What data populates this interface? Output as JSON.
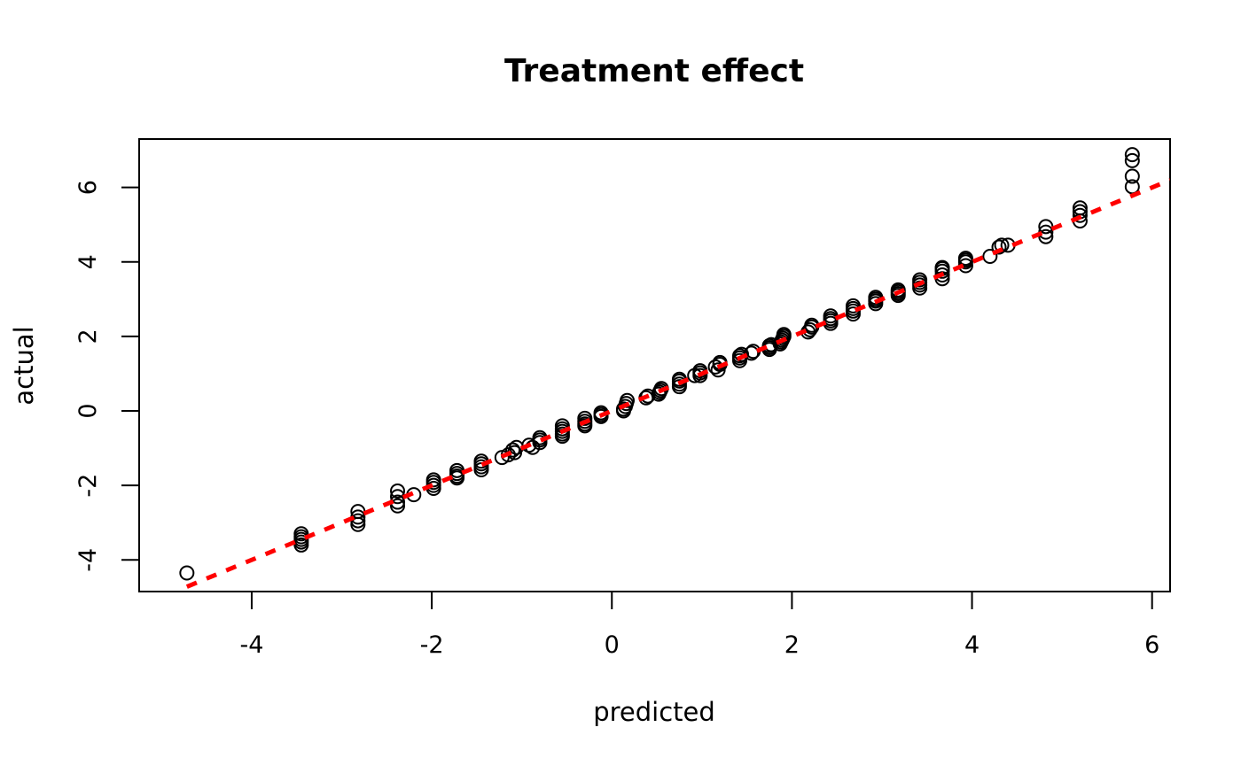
{
  "chart_data": {
    "type": "scatter",
    "title": "Treatment effect",
    "xlabel": "predicted",
    "ylabel": "actual",
    "xlim": [
      -5.25,
      6.2
    ],
    "ylim": [
      -4.85,
      7.3
    ],
    "xticks": [
      -4,
      -2,
      0,
      2,
      4,
      6
    ],
    "yticks": [
      -4,
      -2,
      0,
      2,
      4,
      6
    ],
    "xtick_labels": [
      "-4",
      "-2",
      "0",
      "2",
      "4",
      "6"
    ],
    "ytick_labels": [
      "-4",
      "-2",
      "0",
      "2",
      "4",
      "6"
    ],
    "grid": false,
    "legend": false,
    "reference_line": {
      "slope": 1,
      "intercept": 0,
      "style": "dashed",
      "color": "#ff0000"
    },
    "colors": {
      "points": "#000000",
      "reference_line": "#ff0000"
    },
    "points": [
      [
        -4.72,
        -4.35
      ],
      [
        -3.45,
        -3.3
      ],
      [
        -3.45,
        -3.38
      ],
      [
        -3.45,
        -3.45
      ],
      [
        -3.45,
        -3.52
      ],
      [
        -3.45,
        -3.6
      ],
      [
        -2.82,
        -2.7
      ],
      [
        -2.82,
        -2.85
      ],
      [
        -2.82,
        -2.95
      ],
      [
        -2.82,
        -3.05
      ],
      [
        -2.38,
        -2.15
      ],
      [
        -2.38,
        -2.3
      ],
      [
        -2.38,
        -2.45
      ],
      [
        -2.38,
        -2.55
      ],
      [
        -2.2,
        -2.25
      ],
      [
        -1.98,
        -1.85
      ],
      [
        -1.98,
        -1.92
      ],
      [
        -1.98,
        -2.0
      ],
      [
        -1.98,
        -2.08
      ],
      [
        -1.72,
        -1.6
      ],
      [
        -1.72,
        -1.68
      ],
      [
        -1.72,
        -1.75
      ],
      [
        -1.72,
        -1.8
      ],
      [
        -1.45,
        -1.35
      ],
      [
        -1.45,
        -1.42
      ],
      [
        -1.45,
        -1.5
      ],
      [
        -1.45,
        -1.58
      ],
      [
        -1.22,
        -1.25
      ],
      [
        -1.15,
        -1.18
      ],
      [
        -1.1,
        -1.05
      ],
      [
        -1.08,
        -1.12
      ],
      [
        -1.06,
        -0.98
      ],
      [
        -0.92,
        -0.92
      ],
      [
        -0.88,
        -0.98
      ],
      [
        -0.8,
        -0.72
      ],
      [
        -0.8,
        -0.78
      ],
      [
        -0.8,
        -0.85
      ],
      [
        -0.55,
        -0.4
      ],
      [
        -0.55,
        -0.48
      ],
      [
        -0.55,
        -0.55
      ],
      [
        -0.55,
        -0.62
      ],
      [
        -0.55,
        -0.68
      ],
      [
        -0.3,
        -0.2
      ],
      [
        -0.3,
        -0.28
      ],
      [
        -0.3,
        -0.35
      ],
      [
        -0.3,
        -0.4
      ],
      [
        -0.12,
        -0.05
      ],
      [
        -0.12,
        -0.1
      ],
      [
        -0.12,
        -0.15
      ],
      [
        0.13,
        0.0
      ],
      [
        0.13,
        0.05
      ],
      [
        0.15,
        0.12
      ],
      [
        0.16,
        0.2
      ],
      [
        0.17,
        0.28
      ],
      [
        0.38,
        0.35
      ],
      [
        0.4,
        0.4
      ],
      [
        0.52,
        0.45
      ],
      [
        0.53,
        0.5
      ],
      [
        0.54,
        0.55
      ],
      [
        0.55,
        0.6
      ],
      [
        0.75,
        0.65
      ],
      [
        0.75,
        0.72
      ],
      [
        0.75,
        0.8
      ],
      [
        0.75,
        0.85
      ],
      [
        0.92,
        0.95
      ],
      [
        0.98,
        0.95
      ],
      [
        0.98,
        1.02
      ],
      [
        0.98,
        1.08
      ],
      [
        1.15,
        1.18
      ],
      [
        1.18,
        1.1
      ],
      [
        1.2,
        1.25
      ],
      [
        1.2,
        1.3
      ],
      [
        1.42,
        1.35
      ],
      [
        1.42,
        1.42
      ],
      [
        1.42,
        1.48
      ],
      [
        1.44,
        1.52
      ],
      [
        1.55,
        1.55
      ],
      [
        1.57,
        1.6
      ],
      [
        1.75,
        1.65
      ],
      [
        1.75,
        1.7
      ],
      [
        1.75,
        1.75
      ],
      [
        1.77,
        1.78
      ],
      [
        1.87,
        1.8
      ],
      [
        1.88,
        1.85
      ],
      [
        1.89,
        1.9
      ],
      [
        1.9,
        1.95
      ],
      [
        1.91,
        2.0
      ],
      [
        1.91,
        2.05
      ],
      [
        2.18,
        2.12
      ],
      [
        2.2,
        2.18
      ],
      [
        2.22,
        2.25
      ],
      [
        2.22,
        2.3
      ],
      [
        2.43,
        2.35
      ],
      [
        2.43,
        2.42
      ],
      [
        2.43,
        2.48
      ],
      [
        2.43,
        2.55
      ],
      [
        2.68,
        2.6
      ],
      [
        2.68,
        2.68
      ],
      [
        2.68,
        2.75
      ],
      [
        2.68,
        2.82
      ],
      [
        2.93,
        2.88
      ],
      [
        2.93,
        2.95
      ],
      [
        2.93,
        3.0
      ],
      [
        2.93,
        3.05
      ],
      [
        3.18,
        3.1
      ],
      [
        3.18,
        3.15
      ],
      [
        3.18,
        3.2
      ],
      [
        3.18,
        3.25
      ],
      [
        3.42,
        3.3
      ],
      [
        3.42,
        3.38
      ],
      [
        3.42,
        3.45
      ],
      [
        3.42,
        3.52
      ],
      [
        3.67,
        3.55
      ],
      [
        3.67,
        3.65
      ],
      [
        3.67,
        3.75
      ],
      [
        3.67,
        3.82
      ],
      [
        3.67,
        3.85
      ],
      [
        3.93,
        3.9
      ],
      [
        3.93,
        4.0
      ],
      [
        3.93,
        4.05
      ],
      [
        3.93,
        4.1
      ],
      [
        4.2,
        4.15
      ],
      [
        4.3,
        4.4
      ],
      [
        4.33,
        4.45
      ],
      [
        4.4,
        4.45
      ],
      [
        4.82,
        4.68
      ],
      [
        4.82,
        4.8
      ],
      [
        4.82,
        4.95
      ],
      [
        5.2,
        5.1
      ],
      [
        5.2,
        5.25
      ],
      [
        5.2,
        5.35
      ],
      [
        5.2,
        5.45
      ],
      [
        5.78,
        6.02
      ],
      [
        5.78,
        6.3
      ],
      [
        5.78,
        6.72
      ],
      [
        5.78,
        6.88
      ]
    ]
  }
}
